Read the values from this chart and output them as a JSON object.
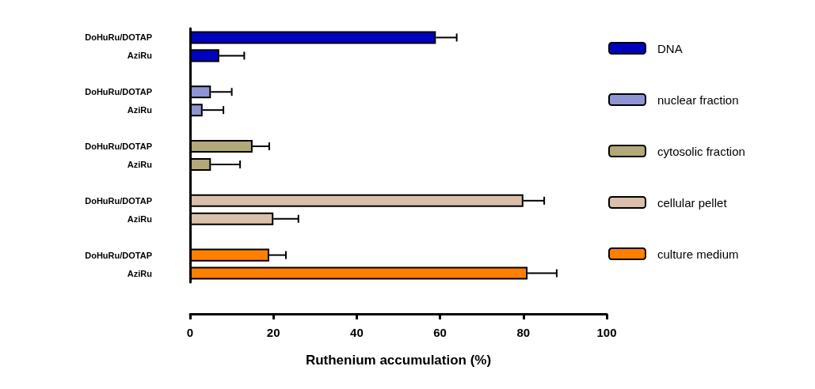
{
  "chart_data": {
    "type": "bar",
    "orientation": "horizontal",
    "xlabel": "Ruthenium accumulation (%)",
    "categories": [
      "DoHuRu/DOTAP",
      "AziRu",
      null,
      "DoHuRu/DOTAP",
      "AziRu",
      null,
      "DoHuRu/DOTAP",
      "AziRu",
      null,
      "DoHuRu/DOTAP",
      "AziRu",
      null,
      "DoHuRu/DOTAP",
      "AziRu"
    ],
    "series": [
      {
        "name": "DNA",
        "color": "#0000c0",
        "values": [
          59,
          7,
          null,
          null,
          null,
          null,
          null,
          null,
          null,
          null,
          null,
          null,
          null,
          null
        ],
        "errors": [
          [
            59,
            64
          ],
          [
            7,
            13
          ],
          null,
          null,
          null,
          null,
          null,
          null,
          null,
          null,
          null,
          null,
          null,
          null
        ]
      },
      {
        "name": "nuclear fraction",
        "color": "#8f95d3",
        "values": [
          null,
          null,
          null,
          5,
          3,
          null,
          null,
          null,
          null,
          null,
          null,
          null,
          null,
          null
        ],
        "errors": [
          null,
          null,
          null,
          [
            5,
            10
          ],
          [
            3,
            8
          ],
          null,
          null,
          null,
          null,
          null,
          null,
          null,
          null,
          null
        ]
      },
      {
        "name": "cytosolic fraction",
        "color": "#b2a87a",
        "values": [
          null,
          null,
          null,
          null,
          null,
          null,
          15,
          5,
          null,
          null,
          null,
          null,
          null,
          null
        ],
        "errors": [
          null,
          null,
          null,
          null,
          null,
          null,
          [
            15,
            19
          ],
          [
            5,
            12
          ],
          null,
          null,
          null,
          null,
          null,
          null
        ]
      },
      {
        "name": "cellular pellet",
        "color": "#dbbfaa",
        "values": [
          null,
          null,
          null,
          null,
          null,
          null,
          null,
          null,
          null,
          80,
          20,
          null,
          null,
          null
        ],
        "errors": [
          null,
          null,
          null,
          null,
          null,
          null,
          null,
          null,
          null,
          [
            80,
            85
          ],
          [
            20,
            26
          ],
          null,
          null,
          null
        ]
      },
      {
        "name": "culture medium",
        "color": "#ff8000",
        "values": [
          null,
          null,
          null,
          null,
          null,
          null,
          null,
          null,
          null,
          null,
          null,
          null,
          19,
          81
        ],
        "errors": [
          null,
          null,
          null,
          null,
          null,
          null,
          null,
          null,
          null,
          null,
          null,
          null,
          [
            19,
            23
          ],
          [
            81,
            88
          ]
        ]
      }
    ],
    "xlim": [
      0,
      100
    ],
    "xticks": [
      0,
      20,
      40,
      60,
      80,
      100
    ],
    "grid": false,
    "legend": "right"
  }
}
